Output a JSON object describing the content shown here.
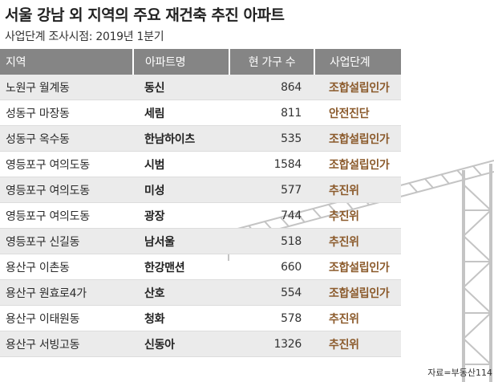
{
  "title": "서울 강남 외 지역의 주요 재건축 추진 아파트",
  "subtitle": "사업단계 조사시점: 2019년 1분기",
  "headers": [
    "지역",
    "아파트명",
    "현 가구 수",
    "사업단계"
  ],
  "rows": [
    [
      "노원구 월계동",
      "동신",
      "864",
      "조합설립인가"
    ],
    [
      "성동구 마장동",
      "세림",
      "811",
      "안전진단"
    ],
    [
      "성동구 옥수동",
      "한남하이츠",
      "535",
      "조합설립인가"
    ],
    [
      "영등포구 여의도동",
      "시범",
      "1584",
      "조합설립인가"
    ],
    [
      "영등포구 여의도동",
      "미성",
      "577",
      "추진위"
    ],
    [
      "영등포구 여의도동",
      "광장",
      "744",
      "추진위"
    ],
    [
      "영등포구 신길동",
      "남서울",
      "518",
      "추진위"
    ],
    [
      "용산구 이촌동",
      "한강맨션",
      "660",
      "조합설립인가"
    ],
    [
      "용산구 원효로4가",
      "산호",
      "554",
      "조합설립인가"
    ],
    [
      "용산구 이태원동",
      "청화",
      "578",
      "추진위"
    ],
    [
      "용산구 서빙고동",
      "신동아",
      "1326",
      "추진위"
    ]
  ],
  "source": "자료=부동산114",
  "colors": {
    "header_bg": "#858585",
    "stripe_bg": "#ebebeb",
    "stage_text": "#8b5a2b",
    "crane": "#c8c8c8"
  },
  "icons": {
    "background": "construction-crane-illustration"
  }
}
